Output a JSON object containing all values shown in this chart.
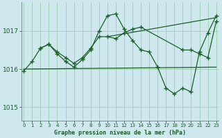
{
  "title": "Graphe pression niveau de la mer (hPa)",
  "bg_color": "#cee8ee",
  "grid_color": "#9ecfb0",
  "line_color": "#1a5e28",
  "xlim": [
    -0.3,
    23.3
  ],
  "ylim": [
    1014.65,
    1017.75
  ],
  "yticks": [
    1015,
    1016,
    1017
  ],
  "xticks": [
    0,
    1,
    2,
    3,
    4,
    5,
    6,
    7,
    8,
    9,
    10,
    11,
    12,
    13,
    14,
    15,
    16,
    17,
    18,
    19,
    20,
    21,
    22,
    23
  ],
  "series1_x": [
    0,
    1,
    2,
    3,
    4,
    5,
    6,
    7,
    8,
    9,
    10,
    11,
    12,
    13,
    14,
    15,
    16,
    17,
    18,
    19,
    20,
    21,
    22,
    23
  ],
  "series1_y": [
    1015.95,
    1016.2,
    1016.55,
    1016.65,
    1016.4,
    1016.2,
    1016.05,
    1016.25,
    1016.5,
    1017.0,
    1017.4,
    1017.45,
    1017.05,
    1016.75,
    1016.5,
    1016.45,
    1016.05,
    1015.5,
    1015.35,
    1015.5,
    1015.4,
    1016.45,
    1016.95,
    1017.4
  ],
  "series2_x": [
    2,
    3,
    4,
    5,
    6,
    7,
    8,
    9,
    10,
    11,
    12,
    13,
    14,
    19,
    20,
    21,
    22,
    23
  ],
  "series2_y": [
    1016.55,
    1016.65,
    1016.45,
    1016.3,
    1016.15,
    1016.3,
    1016.55,
    1016.85,
    1016.85,
    1016.8,
    1016.95,
    1017.05,
    1017.1,
    1016.5,
    1016.5,
    1016.4,
    1016.3,
    1017.25
  ],
  "series3_x": [
    0,
    23
  ],
  "series3_y": [
    1016.0,
    1016.05
  ],
  "series4_x": [
    10,
    23
  ],
  "series4_y": [
    1016.85,
    1017.35
  ]
}
